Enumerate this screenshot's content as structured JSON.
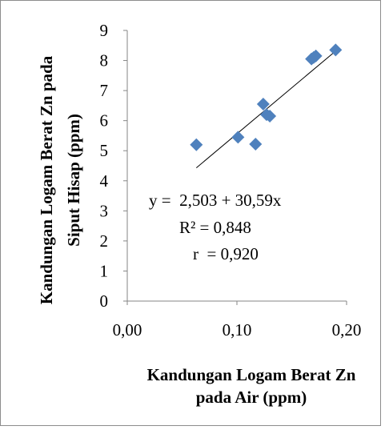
{
  "chart_data": {
    "type": "scatter",
    "xlabel_lines": [
      "Kandungan Logam Berat Zn",
      "pada Air (ppm)"
    ],
    "ylabel_lines": [
      "Kandungan Logam Berat Zn pada",
      "Siput Hisap (ppm)"
    ],
    "xlim": [
      0,
      0.2
    ],
    "ylim": [
      0,
      9
    ],
    "x_ticks": [
      0,
      0.1,
      0.2
    ],
    "x_tick_labels": [
      "0,00",
      "0,10",
      "0,20"
    ],
    "y_ticks": [
      0,
      1,
      2,
      3,
      4,
      5,
      6,
      7,
      8,
      9
    ],
    "y_tick_labels": [
      "0",
      "1",
      "2",
      "3",
      "4",
      "5",
      "6",
      "7",
      "8",
      "9"
    ],
    "grid": false,
    "marker": "diamond",
    "marker_color": "#4f81bd",
    "trendline": {
      "intercept": 2.503,
      "slope": 30.59,
      "x_range": [
        0.063,
        0.19
      ]
    },
    "points": [
      {
        "x": 0.063,
        "y": 5.2
      },
      {
        "x": 0.101,
        "y": 5.45
      },
      {
        "x": 0.117,
        "y": 5.22
      },
      {
        "x": 0.124,
        "y": 6.55
      },
      {
        "x": 0.127,
        "y": 6.2
      },
      {
        "x": 0.13,
        "y": 6.15
      },
      {
        "x": 0.168,
        "y": 8.05
      },
      {
        "x": 0.17,
        "y": 8.1
      },
      {
        "x": 0.172,
        "y": 8.15
      },
      {
        "x": 0.19,
        "y": 8.35
      }
    ],
    "annotations": [
      "y =  2,503 + 30,59x",
      "R² = 0,848",
      "r  = 0,920"
    ]
  }
}
